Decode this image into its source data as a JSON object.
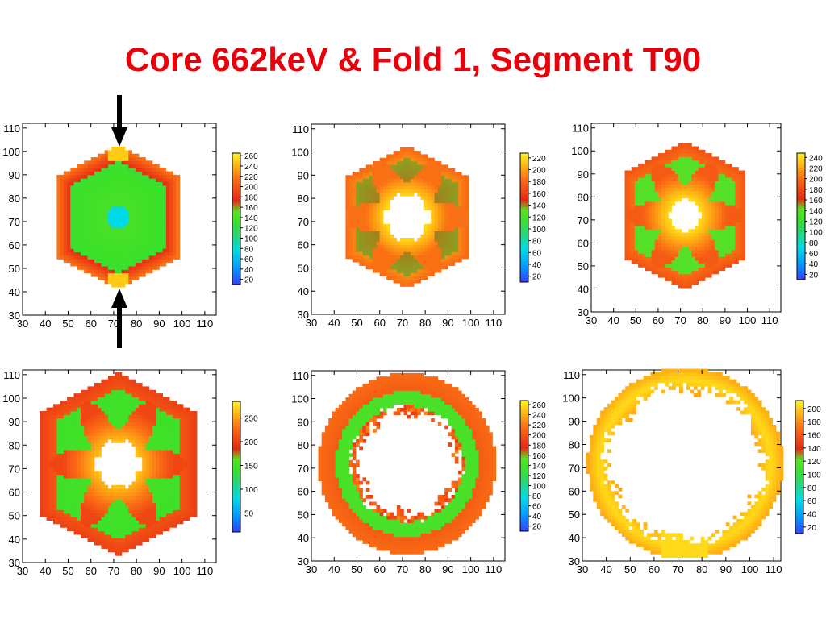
{
  "slide": {
    "title": "Core 662keV & Fold 1, Segment T90",
    "colors": {
      "title": "#e8000b",
      "hole": "#ffffff",
      "arrow": "#000000"
    },
    "annotations": [
      "arrow-down-icon",
      "arrow-up-icon"
    ]
  },
  "chart_data": [
    {
      "type": "heatmap",
      "title": "",
      "xlabel": "",
      "ylabel": "",
      "xlim": [
        30,
        115
      ],
      "ylim": [
        30,
        112
      ],
      "xticks": [
        30,
        40,
        50,
        60,
        70,
        80,
        90,
        100,
        110
      ],
      "yticks": [
        30,
        40,
        50,
        60,
        70,
        80,
        90,
        100,
        110
      ],
      "grid": false,
      "colorbar": {
        "min": 10,
        "max": 265,
        "ticks": [
          20,
          40,
          60,
          80,
          100,
          120,
          140,
          160,
          180,
          200,
          220,
          240,
          260
        ]
      },
      "center": [
        72,
        72
      ],
      "shape": "hexagon-vertical",
      "outer_radius": 31,
      "hole_radius": 0,
      "hole_style": "none",
      "map": "fold",
      "inner_color_value": 75,
      "edge_value": 220,
      "green_value": 145,
      "tip_value": 250,
      "star_depth": 0
    },
    {
      "type": "heatmap",
      "title": "",
      "xlabel": "",
      "ylabel": "",
      "xlim": [
        30,
        115
      ],
      "ylim": [
        30,
        112
      ],
      "xticks": [
        30,
        40,
        50,
        60,
        70,
        80,
        90,
        100,
        110
      ],
      "yticks": [
        30,
        40,
        50,
        60,
        70,
        80,
        90,
        100,
        110
      ],
      "grid": false,
      "colorbar": {
        "min": 10,
        "max": 228,
        "ticks": [
          20,
          40,
          60,
          80,
          100,
          120,
          140,
          160,
          180,
          200,
          220
        ]
      },
      "center": [
        72,
        72
      ],
      "shape": "hexagon-vertical",
      "outer_radius": 31,
      "hole_radius": 8,
      "hole_style": "star",
      "map": "star",
      "edge_value": 195,
      "green_value": 145,
      "tip_value": 225,
      "star_depth": 14
    },
    {
      "type": "heatmap",
      "title": "",
      "xlabel": "",
      "ylabel": "",
      "xlim": [
        30,
        115
      ],
      "ylim": [
        30,
        112
      ],
      "xticks": [
        30,
        40,
        50,
        60,
        70,
        80,
        90,
        100,
        110
      ],
      "yticks": [
        30,
        40,
        50,
        60,
        70,
        80,
        90,
        100,
        110
      ],
      "grid": false,
      "colorbar": {
        "min": 10,
        "max": 248,
        "ticks": [
          20,
          40,
          60,
          80,
          100,
          120,
          140,
          160,
          180,
          200,
          220,
          240
        ]
      },
      "center": [
        72,
        72
      ],
      "shape": "hexagon-vertical",
      "outer_radius": 32,
      "hole_radius": 7,
      "hole_style": "round",
      "map": "star",
      "edge_value": 200,
      "green_value": 145,
      "tip_value": 240,
      "star_depth": 13
    },
    {
      "type": "heatmap",
      "title": "",
      "xlabel": "",
      "ylabel": "",
      "xlim": [
        30,
        115
      ],
      "ylim": [
        30,
        112
      ],
      "xticks": [
        30,
        40,
        50,
        60,
        70,
        80,
        90,
        100,
        110
      ],
      "yticks": [
        30,
        40,
        50,
        60,
        70,
        80,
        90,
        100,
        110
      ],
      "grid": false,
      "colorbar": {
        "min": 10,
        "max": 285,
        "ticks": [
          50,
          100,
          150,
          200,
          250
        ]
      },
      "center": [
        72,
        72
      ],
      "shape": "hexagon-vertical",
      "outer_radius": 39,
      "hole_radius": 8,
      "hole_style": "star",
      "map": "star",
      "edge_value": 215,
      "green_value": 150,
      "tip_value": 270,
      "star_depth": 16
    },
    {
      "type": "heatmap",
      "title": "",
      "xlabel": "",
      "ylabel": "",
      "xlim": [
        30,
        115
      ],
      "ylim": [
        30,
        112
      ],
      "xticks": [
        30,
        40,
        50,
        60,
        70,
        80,
        90,
        100,
        110
      ],
      "yticks": [
        30,
        40,
        50,
        60,
        70,
        80,
        90,
        100,
        110
      ],
      "grid": false,
      "colorbar": {
        "min": 10,
        "max": 268,
        "ticks": [
          20,
          40,
          60,
          80,
          100,
          120,
          140,
          160,
          180,
          200,
          220,
          240,
          260
        ]
      },
      "center": [
        72,
        72
      ],
      "shape": "circle",
      "outer_radius": 39,
      "hole_radius": 20,
      "hole_style": "ragged",
      "map": "ring",
      "edge_value": 205,
      "green_value": 150,
      "tip_value": 210,
      "star_depth": 0
    },
    {
      "type": "heatmap",
      "title": "",
      "xlabel": "",
      "ylabel": "",
      "xlim": [
        30,
        113
      ],
      "ylim": [
        30,
        112
      ],
      "xticks": [
        30,
        40,
        50,
        60,
        70,
        80,
        90,
        100,
        110
      ],
      "yticks": [
        30,
        40,
        50,
        60,
        70,
        80,
        90,
        100,
        110
      ],
      "grid": false,
      "colorbar": {
        "min": 10,
        "max": 212,
        "ticks": [
          20,
          40,
          60,
          80,
          100,
          120,
          140,
          160,
          180,
          200
        ]
      },
      "center": [
        73,
        72
      ],
      "shape": "circle",
      "outer_radius": 41,
      "hole_radius": 30,
      "hole_style": "ragged",
      "map": "ring-yellow",
      "edge_value": 195,
      "green_value": 160,
      "tip_value": 205,
      "star_depth": 0
    }
  ]
}
